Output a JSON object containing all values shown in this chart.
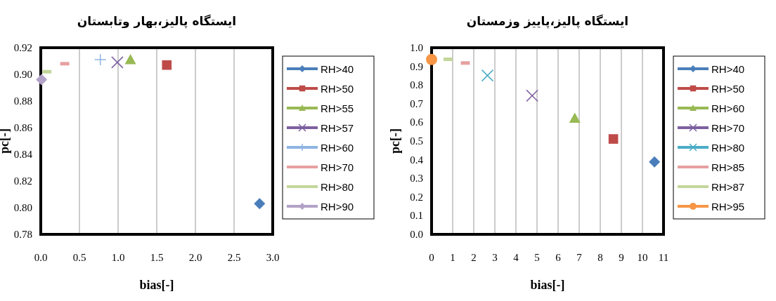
{
  "chart_data": [
    {
      "type": "scatter",
      "title": "ایستگاه پالیز،بهار وتابستان",
      "xlabel": "bias[-]",
      "ylabel": "pc[-]",
      "xlim": [
        0,
        3
      ],
      "xticks": [
        {
          "value": 0,
          "label": "0.0"
        },
        {
          "value": 0.5,
          "label": "0.5"
        },
        {
          "value": 1,
          "label": "1.0"
        },
        {
          "value": 1.5,
          "label": "1.5"
        },
        {
          "value": 2,
          "label": "2.0"
        },
        {
          "value": 2.5,
          "label": "2.5"
        },
        {
          "value": 3,
          "label": "3.0"
        }
      ],
      "ylim": [
        0.78,
        0.92
      ],
      "yticks": [
        {
          "value": 0.78,
          "label": "0.78"
        },
        {
          "value": 0.8,
          "label": "0.80"
        },
        {
          "value": 0.82,
          "label": "0.82"
        },
        {
          "value": 0.84,
          "label": "0.84"
        },
        {
          "value": 0.86,
          "label": "0.86"
        },
        {
          "value": 0.88,
          "label": "0.88"
        },
        {
          "value": 0.9,
          "label": "0.90"
        },
        {
          "value": 0.92,
          "label": "0.92"
        }
      ],
      "grid": "x",
      "legend": "right",
      "series": [
        {
          "name": "RH>40",
          "color": "#4a7ebb",
          "marker": "diamond",
          "x": [
            2.83
          ],
          "values": [
            0.803
          ]
        },
        {
          "name": "RH>50",
          "color": "#be4b48",
          "marker": "square",
          "x": [
            1.63
          ],
          "values": [
            0.907
          ]
        },
        {
          "name": "RH>55",
          "color": "#98b954",
          "marker": "triangle",
          "x": [
            1.16
          ],
          "values": [
            0.911
          ]
        },
        {
          "name": "RH>57",
          "color": "#7d60a0",
          "marker": "cross",
          "x": [
            0.99
          ],
          "values": [
            0.909
          ]
        },
        {
          "name": "RH>60",
          "color": "#8eb4e3",
          "marker": "plus",
          "x": [
            0.77
          ],
          "values": [
            0.911
          ]
        },
        {
          "name": "RH>70",
          "color": "#e6a0a0",
          "x": [
            0.31
          ],
          "values": [
            0.908
          ]
        },
        {
          "name": "RH>80",
          "color": "#c3d69b",
          "x": [
            0.08
          ],
          "values": [
            0.902
          ]
        },
        {
          "name": "RH>90",
          "color": "#b3a2c7",
          "marker": "diamond",
          "x": [
            0.01
          ],
          "values": [
            0.896
          ]
        }
      ]
    },
    {
      "type": "scatter",
      "title": "ایستگاه پالیز،پاییز وزمستان",
      "xlabel": "bias[-]",
      "ylabel": "pc[-]",
      "xlim": [
        0,
        11
      ],
      "xticks": [
        0,
        1,
        2,
        3,
        4,
        5,
        6,
        7,
        8,
        9,
        10,
        11
      ],
      "ylim": [
        0,
        1
      ],
      "yticks": [
        {
          "value": 0,
          "label": "0.0"
        },
        0.1,
        0.2,
        0.3,
        0.4,
        0.5,
        0.6,
        0.7,
        0.8,
        0.9,
        {
          "value": 1,
          "label": "1.0"
        }
      ],
      "grid": "x",
      "legend": "right",
      "series": [
        {
          "name": "RH>40",
          "color": "#4a7ebb",
          "marker": "diamond",
          "x": [
            10.57
          ],
          "values": [
            0.388
          ]
        },
        {
          "name": "RH>50",
          "color": "#be4b48",
          "marker": "square",
          "x": [
            8.62
          ],
          "values": [
            0.511
          ]
        },
        {
          "name": "RH>60",
          "color": "#98b954",
          "marker": "triangle",
          "x": [
            6.79
          ],
          "values": [
            0.622
          ]
        },
        {
          "name": "RH>70",
          "color": "#7d60a0",
          "marker": "cross",
          "x": [
            4.77
          ],
          "values": [
            0.743
          ]
        },
        {
          "name": "RH>80",
          "color": "#4bacc6",
          "marker": "cross",
          "x": [
            2.65
          ],
          "values": [
            0.851
          ]
        },
        {
          "name": "RH>85",
          "color": "#e6a0a0",
          "x": [
            1.6
          ],
          "values": [
            0.918
          ]
        },
        {
          "name": "RH>87",
          "color": "#c3d69b",
          "x": [
            0.78
          ],
          "values": [
            0.938
          ]
        },
        {
          "name": "RH>95",
          "color": "#f79646",
          "marker": "circle",
          "x": [
            0
          ],
          "values": [
            0.937
          ]
        }
      ]
    }
  ]
}
